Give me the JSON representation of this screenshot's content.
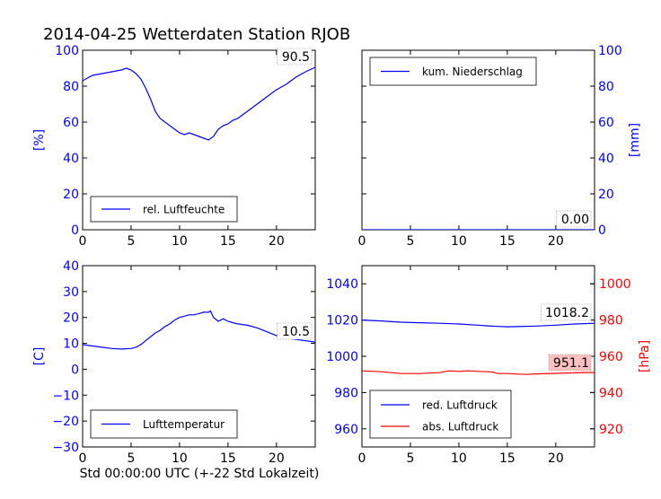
{
  "figure": {
    "title": "2014-04-25 Wetterdaten Station RJOB",
    "xlabel": "Std 00:00:00 UTC (+-22 Std Lokalzeit)"
  },
  "colors": {
    "blue": "#0000ff",
    "red": "#ff0000",
    "frame": "#000000",
    "badge_red": "#ffc0c0"
  },
  "chart_data": [
    {
      "id": "humidity",
      "type": "line",
      "ylabel": "[%]",
      "xlim": [
        0,
        24
      ],
      "ylim": [
        0,
        100
      ],
      "xticks": [
        0,
        5,
        10,
        15,
        20
      ],
      "yticks": [
        0,
        20,
        40,
        60,
        80,
        100
      ],
      "legend": "bottom-left",
      "last_value": "90.5",
      "series": [
        {
          "name": "rel. Luftfeuchte",
          "color": "#0000ff",
          "x": [
            0,
            1,
            2,
            3,
            4,
            4.5,
            5,
            5.5,
            6,
            6.5,
            7,
            7.5,
            8,
            8.5,
            9,
            9.5,
            10,
            10.5,
            11,
            11.5,
            12,
            12.5,
            13,
            13.5,
            14,
            14.5,
            15,
            15.5,
            16,
            16.5,
            17,
            18,
            19,
            20,
            21,
            22,
            23,
            24
          ],
          "y": [
            83,
            86,
            87,
            88,
            89,
            90,
            89,
            87,
            84,
            79,
            73,
            66,
            62,
            60,
            58,
            56,
            54,
            53,
            54,
            53,
            52,
            51,
            50,
            52,
            56,
            58,
            59,
            61,
            62,
            64,
            66,
            70,
            74,
            78,
            81,
            85,
            88,
            90.5
          ]
        }
      ]
    },
    {
      "id": "precip",
      "type": "line",
      "ylabel": "[mm]",
      "xlim": [
        0,
        24
      ],
      "ylim": [
        0,
        100
      ],
      "xticks": [
        0,
        5,
        10,
        15,
        20
      ],
      "yticks": [
        0,
        20,
        40,
        60,
        80,
        100
      ],
      "legend": "top-left",
      "last_value": "0.00",
      "series": [
        {
          "name": "kum. Niederschlag",
          "color": "#0000ff",
          "x": [
            0,
            24
          ],
          "y": [
            0,
            0
          ]
        }
      ]
    },
    {
      "id": "temperature",
      "type": "line",
      "ylabel": "[C]",
      "xlim": [
        0,
        24
      ],
      "ylim": [
        -30,
        40
      ],
      "xticks": [
        0,
        5,
        10,
        15,
        20
      ],
      "yticks": [
        -30,
        -20,
        -10,
        0,
        10,
        20,
        30,
        40
      ],
      "legend": "bottom-left",
      "last_value": "10.5",
      "series": [
        {
          "name": "Lufttemperatur",
          "color": "#0000ff",
          "x": [
            0,
            1,
            2,
            3,
            4,
            5,
            5.5,
            6,
            6.5,
            7,
            7.5,
            8,
            8.5,
            9,
            9.5,
            10,
            10.5,
            11,
            11.5,
            12,
            12.5,
            13,
            13.2,
            13.5,
            14,
            14.5,
            15,
            15.5,
            16,
            17,
            18,
            19,
            20,
            21,
            22,
            23,
            24
          ],
          "y": [
            9.5,
            9,
            8.5,
            8,
            7.8,
            8,
            8.5,
            9.5,
            11,
            12.5,
            14,
            15,
            16.5,
            17.5,
            19,
            20,
            20.5,
            21,
            21,
            21.5,
            22,
            22,
            22.5,
            20,
            18.5,
            19.5,
            18.5,
            18,
            17.5,
            17,
            16,
            14.5,
            13,
            12,
            11.5,
            11,
            10.5
          ]
        }
      ]
    },
    {
      "id": "pressure",
      "type": "line",
      "ylabel": "[hPa]",
      "xlim": [
        0,
        24
      ],
      "ylim": [
        950,
        1050
      ],
      "ylim_right": [
        910,
        1010
      ],
      "xticks": [
        0,
        5,
        10,
        15,
        20
      ],
      "yticks": [
        960,
        980,
        1000,
        1020,
        1040
      ],
      "yticks_right": [
        920,
        940,
        960,
        980,
        1000
      ],
      "legend": "bottom-left",
      "last_value": "1018.2",
      "last_value_right": "951.1",
      "series": [
        {
          "name": "red. Luftdruck",
          "color": "#0000ff",
          "axis": "left",
          "x": [
            0,
            2,
            4,
            6,
            8,
            10,
            12,
            13,
            14,
            15,
            16,
            18,
            20,
            22,
            24
          ],
          "y": [
            1020,
            1019.5,
            1018.8,
            1018.5,
            1018.2,
            1017.8,
            1017.2,
            1016.8,
            1016.5,
            1016.3,
            1016.4,
            1016.7,
            1017.2,
            1017.8,
            1018.2
          ]
        },
        {
          "name": "abs. Luftdruck",
          "color": "#ff0000",
          "axis": "right",
          "x": [
            0,
            2,
            4,
            6,
            8,
            9,
            10,
            11,
            12,
            13,
            13.5,
            14,
            15,
            16,
            17,
            18,
            20,
            22,
            24
          ],
          "y": [
            952,
            951.5,
            950.5,
            950.5,
            951,
            952,
            951.7,
            952,
            951.7,
            951.5,
            951.3,
            950.5,
            950.5,
            950.2,
            950,
            950.3,
            950.6,
            950.9,
            951.1
          ]
        }
      ]
    }
  ]
}
